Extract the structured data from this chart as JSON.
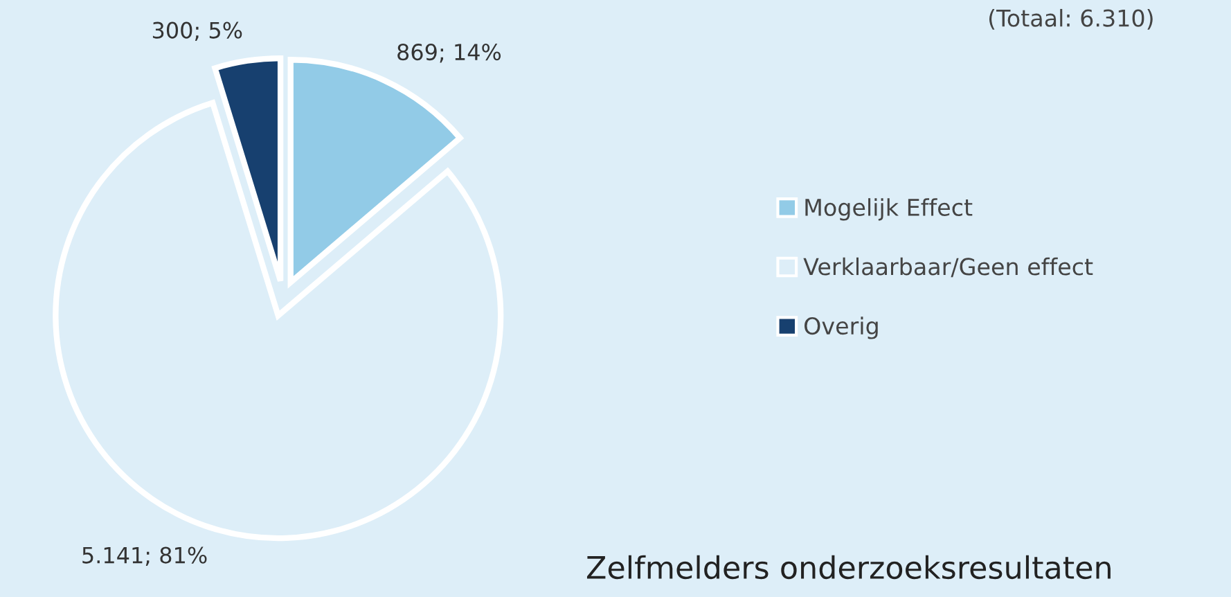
{
  "chart_data": {
    "type": "pie",
    "title": "Zelfmelders onderzoeksresultaten",
    "subtitle": "(Totaal: 6.310)",
    "categories": [
      "Mogelijk Effect",
      "Verklaarbaar/Geen effect",
      "Overig"
    ],
    "values": [
      869,
      5141,
      300
    ],
    "colors": [
      "#92cbe7",
      "#ddeef8",
      "#17406f"
    ],
    "value_labels": [
      "869; 14%",
      "5.141; 81%",
      "300; 5%"
    ],
    "legend": "right"
  }
}
